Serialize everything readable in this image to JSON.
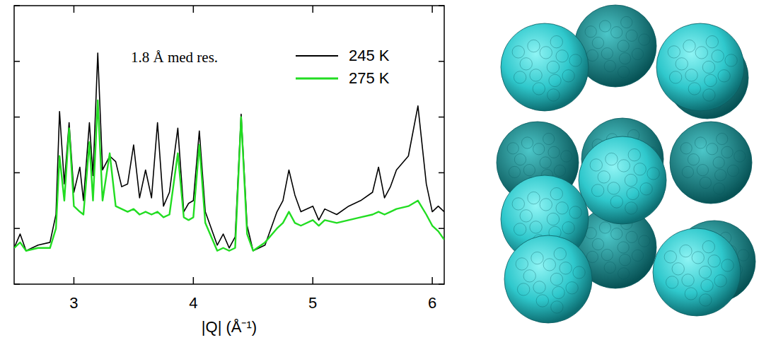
{
  "chart_data": {
    "type": "line",
    "annotation": "1.8 Å med res.",
    "x_label": "|Q| (Å⁻¹)",
    "x": [
      2.5,
      2.55,
      2.6,
      2.7,
      2.8,
      2.85,
      2.88,
      2.92,
      2.96,
      3.0,
      3.05,
      3.08,
      3.13,
      3.16,
      3.2,
      3.24,
      3.3,
      3.35,
      3.4,
      3.45,
      3.5,
      3.55,
      3.6,
      3.65,
      3.7,
      3.75,
      3.8,
      3.87,
      3.92,
      3.96,
      4.0,
      4.05,
      4.1,
      4.2,
      4.25,
      4.3,
      4.35,
      4.4,
      4.45,
      4.5,
      4.6,
      4.7,
      4.75,
      4.8,
      4.85,
      4.9,
      5.0,
      5.05,
      5.1,
      5.2,
      5.3,
      5.4,
      5.5,
      5.55,
      5.6,
      5.65,
      5.7,
      5.8,
      5.88,
      5.95,
      6.0,
      6.05,
      6.1
    ],
    "series": [
      {
        "name": "245 K",
        "color": "#000000",
        "values": [
          13,
          18,
          12,
          14,
          15,
          25,
          62,
          36,
          58,
          33,
          42,
          30,
          58,
          39,
          83,
          41,
          46,
          44,
          35,
          36,
          50,
          31,
          41,
          31,
          58,
          28,
          33,
          56,
          26,
          29,
          30,
          55,
          26,
          14,
          18,
          13,
          17,
          61,
          21,
          12,
          14,
          26,
          30,
          41,
          32,
          26,
          28,
          23,
          27,
          25,
          28,
          30,
          33,
          42,
          31,
          35,
          41,
          46,
          64,
          36,
          26,
          28,
          26
        ]
      },
      {
        "name": "275 K",
        "color": "#22dd22",
        "values": [
          13,
          15,
          12,
          13,
          13,
          20,
          46,
          30,
          56,
          28,
          26,
          25,
          51,
          30,
          66,
          30,
          47,
          28,
          27,
          26,
          27,
          25,
          26,
          25,
          26,
          24,
          25,
          47,
          24,
          23,
          24,
          50,
          22,
          12,
          13,
          12,
          13,
          60,
          18,
          12,
          15,
          20,
          22,
          26,
          22,
          21,
          23,
          21,
          23,
          22,
          23,
          24,
          25,
          26,
          25,
          26,
          27,
          28,
          30,
          25,
          21,
          19,
          16
        ]
      }
    ],
    "xlim": [
      2.5,
      6.1
    ],
    "xticks": [
      3,
      4,
      5,
      6
    ],
    "ylim": [
      0,
      100
    ],
    "yticks": [
      0,
      20,
      40,
      60,
      80,
      100
    ],
    "tick_labels": "x",
    "legend": "upper right"
  }
}
